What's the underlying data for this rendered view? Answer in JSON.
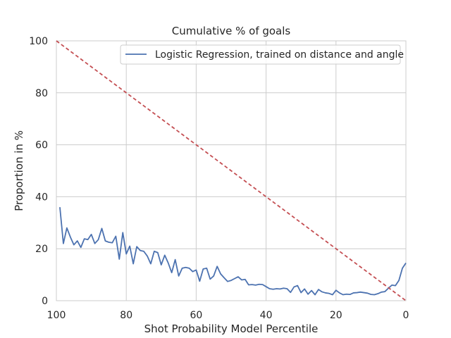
{
  "chart_data": {
    "type": "line",
    "title": "Cumulative % of goals",
    "xlabel": "Shot Probability Model Percentile",
    "ylabel": "Proportion in %",
    "xlim": [
      100,
      0
    ],
    "ylim": [
      0,
      100
    ],
    "x_reversed": true,
    "grid": true,
    "legend_placement": "top-right",
    "xticks": [
      100,
      80,
      60,
      40,
      20,
      0
    ],
    "yticks": [
      0,
      20,
      40,
      60,
      80,
      100
    ],
    "xtick_labels": [
      "100",
      "80",
      "60",
      "40",
      "20",
      "0"
    ],
    "ytick_labels": [
      "0",
      "20",
      "40",
      "60",
      "80",
      "100"
    ],
    "series": [
      {
        "name": "Logistic Regression, trained on distance and angle",
        "color": "#4c72b0",
        "style": "solid",
        "points": [
          [
            99,
            36
          ],
          [
            98,
            22
          ],
          [
            97,
            28
          ],
          [
            96,
            24.5
          ],
          [
            95,
            21.5
          ],
          [
            94,
            23
          ],
          [
            93,
            20.5
          ],
          [
            92,
            23.8
          ],
          [
            91,
            23.5
          ],
          [
            90,
            25.5
          ],
          [
            89,
            22
          ],
          [
            88,
            23.5
          ],
          [
            87,
            27.8
          ],
          [
            86,
            23
          ],
          [
            85,
            22.5
          ],
          [
            84,
            22.3
          ],
          [
            83,
            24.8
          ],
          [
            82,
            16
          ],
          [
            81,
            26.2
          ],
          [
            80,
            18
          ],
          [
            79,
            21
          ],
          [
            78,
            14.2
          ],
          [
            77,
            20.8
          ],
          [
            76,
            19.3
          ],
          [
            75,
            19
          ],
          [
            74,
            17.2
          ],
          [
            73,
            14.2
          ],
          [
            72,
            19
          ],
          [
            71,
            18.5
          ],
          [
            70,
            13.8
          ],
          [
            69,
            17.5
          ],
          [
            68,
            14.5
          ],
          [
            67,
            10.8
          ],
          [
            66,
            15.8
          ],
          [
            65,
            9.5
          ],
          [
            64,
            12.5
          ],
          [
            63,
            12.8
          ],
          [
            62,
            12.5
          ],
          [
            61,
            11.2
          ],
          [
            60,
            11.8
          ],
          [
            59,
            7.5
          ],
          [
            58,
            12.2
          ],
          [
            57,
            12.5
          ],
          [
            56,
            8.3
          ],
          [
            55,
            9.5
          ],
          [
            54,
            13.2
          ],
          [
            53,
            10.3
          ],
          [
            52,
            8.8
          ],
          [
            51,
            7.4
          ],
          [
            50,
            7.8
          ],
          [
            49,
            8.5
          ],
          [
            48,
            9.2
          ],
          [
            47,
            8
          ],
          [
            46,
            8.2
          ],
          [
            45,
            6.1
          ],
          [
            44,
            6.2
          ],
          [
            43,
            6
          ],
          [
            42,
            6.3
          ],
          [
            41,
            6.2
          ],
          [
            40,
            5.4
          ],
          [
            39,
            4.6
          ],
          [
            38,
            4.4
          ],
          [
            37,
            4.6
          ],
          [
            36,
            4.5
          ],
          [
            35,
            4.8
          ],
          [
            34,
            4.6
          ],
          [
            33,
            3.2
          ],
          [
            32,
            5.3
          ],
          [
            31,
            5.8
          ],
          [
            30,
            3.1
          ],
          [
            29,
            4.5
          ],
          [
            28,
            2.5
          ],
          [
            27,
            3.9
          ],
          [
            26,
            2.3
          ],
          [
            25,
            4.3
          ],
          [
            24,
            3.4
          ],
          [
            23,
            3
          ],
          [
            22,
            2.8
          ],
          [
            21,
            2.3
          ],
          [
            20,
            4
          ],
          [
            19,
            3
          ],
          [
            18,
            2.3
          ],
          [
            17,
            2.5
          ],
          [
            16,
            2.4
          ],
          [
            15,
            3
          ],
          [
            14,
            3.1
          ],
          [
            13,
            3.3
          ],
          [
            12,
            3.1
          ],
          [
            11,
            2.9
          ],
          [
            10,
            2.4
          ],
          [
            9,
            2.3
          ],
          [
            8,
            2.7
          ],
          [
            7,
            3.3
          ],
          [
            6,
            3.5
          ],
          [
            5,
            4.8
          ],
          [
            4,
            6
          ],
          [
            3,
            5.8
          ],
          [
            2,
            7.8
          ],
          [
            1,
            12.5
          ],
          [
            0,
            14.5
          ]
        ]
      },
      {
        "color": "#c44e52",
        "style": "dashed",
        "points": [
          [
            100,
            100
          ],
          [
            0,
            0
          ]
        ]
      }
    ]
  }
}
